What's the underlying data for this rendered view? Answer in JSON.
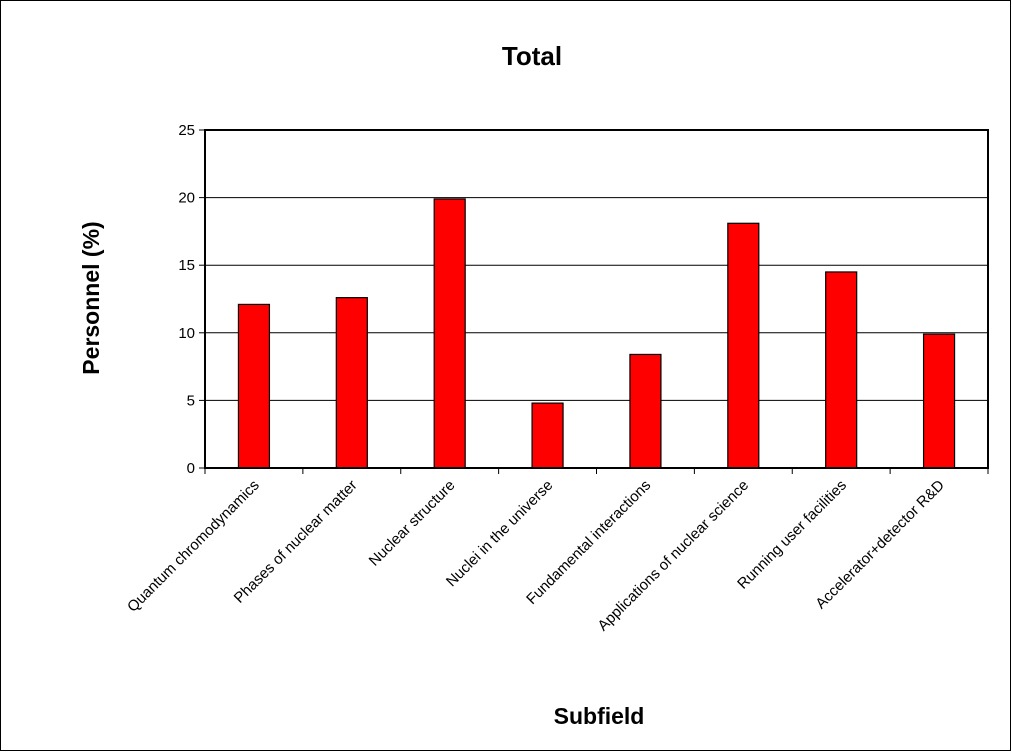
{
  "chart_data": {
    "type": "bar",
    "title": "Total",
    "xlabel": "Subfield",
    "ylabel": "Personnel (%)",
    "categories": [
      "Quantum chromodynamics",
      "Phases of nuclear matter",
      "Nuclear structure",
      "Nuclei in the universe",
      "Fundamental interactions",
      "Applications of nuclear science",
      "Running user facilities",
      "Accelerator+detector R&D"
    ],
    "values": [
      12.1,
      12.6,
      19.9,
      4.8,
      8.4,
      18.1,
      14.5,
      9.9
    ],
    "ylim": [
      0,
      25
    ],
    "yticks": [
      "0",
      "5",
      "10",
      "15",
      "20",
      "25"
    ],
    "ytick_values": [
      0,
      5,
      10,
      15,
      20,
      25
    ],
    "grid": true,
    "legend": "none",
    "colors": {
      "bar": "#ff0000",
      "bar_outline": "#000000",
      "grid": "#000000",
      "background": "#ffffff"
    }
  }
}
